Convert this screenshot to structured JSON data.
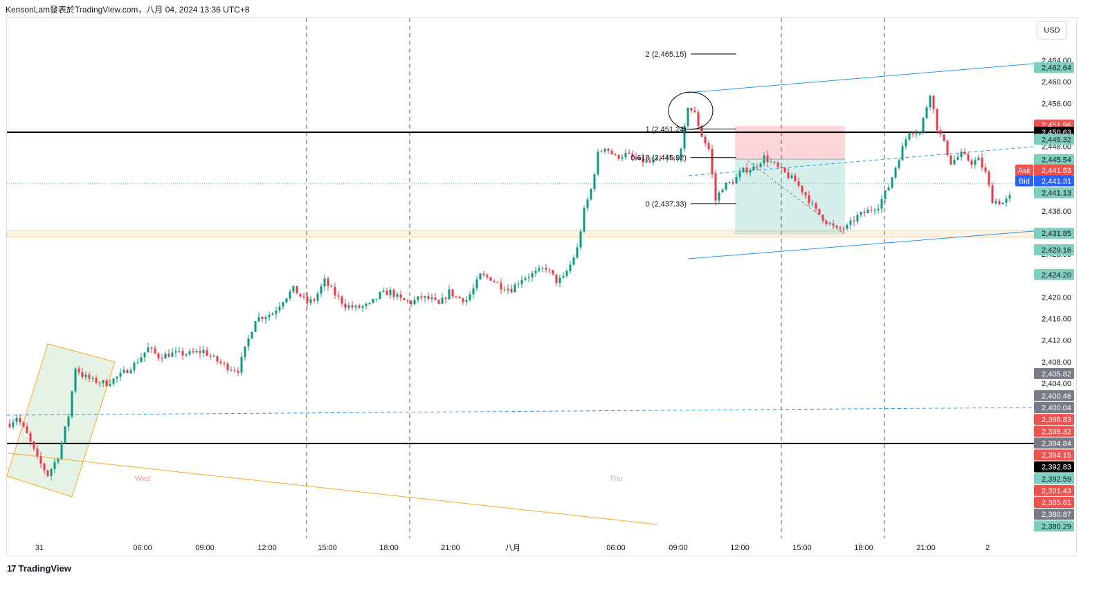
{
  "header": {
    "text": "KensonLam發表於TradingView.com，八月 04, 2024 13:36 UTC+8"
  },
  "currency_button": "USD",
  "footer": {
    "logo_mark": "17",
    "logo_text": "TradingView"
  },
  "chart_data": {
    "type": "candlestick",
    "ylim": [
      2377.5,
      2467.0
    ],
    "price_axis_ticks": [
      2464,
      2460,
      2456,
      2452,
      2448,
      2444,
      2440,
      2436,
      2432,
      2428,
      2424,
      2420,
      2416,
      2412,
      2408,
      2404
    ],
    "time_axis_labels": [
      "31",
      "06:00",
      "09:00",
      "12:00",
      "15:00",
      "18:00",
      "21:00",
      "八月",
      "06:00",
      "09:00",
      "12:00",
      "15:00",
      "18:00",
      "21:00",
      "2"
    ],
    "day_labels": [
      "Wed",
      "Thu"
    ],
    "horizontal_lines": [
      2450.63,
      2392.83
    ],
    "current_price": 2441.13,
    "price_labels": [
      {
        "value": "2,462.64",
        "price": 2462.64,
        "color": "#7fcfbf",
        "text_color": "#131722"
      },
      {
        "value": "2,451.96",
        "price": 2451.96,
        "color": "#ef5350",
        "text_color": "#ffffff"
      },
      {
        "value": "2,450.63",
        "price": 2450.63,
        "color": "#000000",
        "text_color": "#ffffff"
      },
      {
        "value": "2,449.32",
        "price": 2449.32,
        "color": "#7fcfbf",
        "text_color": "#131722"
      },
      {
        "value": "2,445.54",
        "price": 2445.54,
        "color": "#7fcfbf",
        "text_color": "#131722"
      },
      {
        "value": "2,441.63",
        "price": 2443.6,
        "color": "#ef5350",
        "text_color": "#ffffff",
        "tag": "Ask",
        "tag_color": "#ef5350"
      },
      {
        "value": "2,441.31",
        "price": 2441.6,
        "color": "#2962ff",
        "text_color": "#ffffff",
        "tag": "Bid",
        "tag_color": "#2962ff"
      },
      {
        "value": "2,441.13",
        "price": 2439.4,
        "color": "#7fcfbf",
        "text_color": "#131722"
      },
      {
        "value": "2,431.85",
        "price": 2431.85,
        "color": "#7fcfbf",
        "text_color": "#131722"
      },
      {
        "value": "2,429.16",
        "price": 2428.8,
        "color": "#7fcfbf",
        "text_color": "#131722"
      },
      {
        "value": "2,424.20",
        "price": 2424.2,
        "color": "#7fcfbf",
        "text_color": "#131722"
      },
      {
        "value": "2,405.82",
        "price": 2405.82,
        "color": "#787b86",
        "text_color": "#ffffff"
      },
      {
        "value": "2,400.46",
        "price": 2401.7,
        "color": "#787b86",
        "text_color": "#ffffff"
      },
      {
        "value": "2,400.04",
        "price": 2399.5,
        "color": "#787b86",
        "text_color": "#ffffff"
      },
      {
        "value": "2,398.83",
        "price": 2397.3,
        "color": "#ef5350",
        "text_color": "#ffffff"
      },
      {
        "value": "2,396.32",
        "price": 2395.1,
        "color": "#ef5350",
        "text_color": "#ffffff"
      },
      {
        "value": "2,394.84",
        "price": 2392.9,
        "color": "#787b86",
        "text_color": "#ffffff"
      },
      {
        "value": "2,394.15",
        "price": 2390.7,
        "color": "#ef5350",
        "text_color": "#ffffff"
      },
      {
        "value": "2,392.83",
        "price": 2388.5,
        "color": "#000000",
        "text_color": "#ffffff"
      },
      {
        "value": "2,392.59",
        "price": 2386.3,
        "color": "#7fcfbf",
        "text_color": "#131722"
      },
      {
        "value": "2,391.43",
        "price": 2384.1,
        "color": "#ef5350",
        "text_color": "#ffffff"
      },
      {
        "value": "2,385.61",
        "price": 2381.9,
        "color": "#ef5350",
        "text_color": "#ffffff"
      },
      {
        "value": "2,380.87",
        "price": 2379.7,
        "color": "#787b86",
        "text_color": "#ffffff"
      },
      {
        "value": "2,380.29",
        "price": 2377.5,
        "color": "#7fcfbf",
        "text_color": "#131722"
      }
    ],
    "fib_levels": [
      {
        "label": "2 (2,465.15)",
        "price": 2465.15
      },
      {
        "label": "1 (2,451.24)",
        "price": 2451.24
      },
      {
        "label": "0.618 (2,445.92)",
        "price": 2445.92
      },
      {
        "label": "0 (2,437.33)",
        "price": 2437.33
      }
    ],
    "close_path": [
      [
        0,
        2396.5
      ],
      [
        2,
        2397.8
      ],
      [
        5,
        2394.5
      ],
      [
        8,
        2390.0
      ],
      [
        11,
        2387.0
      ],
      [
        14,
        2390.5
      ],
      [
        17,
        2398.0
      ],
      [
        19,
        2407.0
      ],
      [
        21,
        2405.5
      ],
      [
        24,
        2404.5
      ],
      [
        28,
        2404.0
      ],
      [
        32,
        2405.5
      ],
      [
        36,
        2407.5
      ],
      [
        40,
        2410.5
      ],
      [
        43,
        2409.0
      ],
      [
        47,
        2409.5
      ],
      [
        52,
        2409.5
      ],
      [
        56,
        2410.0
      ],
      [
        59,
        2408.5
      ],
      [
        63,
        2407.0
      ],
      [
        66,
        2406.5
      ],
      [
        71,
        2416.0
      ],
      [
        76,
        2417.0
      ],
      [
        79,
        2419.5
      ],
      [
        82,
        2421.5
      ],
      [
        86,
        2419.0
      ],
      [
        88,
        2419.5
      ],
      [
        91,
        2423.0
      ],
      [
        94,
        2420.5
      ],
      [
        97,
        2418.5
      ],
      [
        100,
        2418.0
      ],
      [
        104,
        2418.5
      ],
      [
        107,
        2420.5
      ],
      [
        110,
        2421.0
      ],
      [
        113,
        2419.5
      ],
      [
        116,
        2419.0
      ],
      [
        119,
        2420.0
      ],
      [
        122,
        2419.5
      ],
      [
        124,
        2418.5
      ],
      [
        127,
        2421.0
      ],
      [
        129,
        2420.0
      ],
      [
        132,
        2419.5
      ],
      [
        134,
        2421.5
      ],
      [
        136,
        2424.0
      ],
      [
        139,
        2423.5
      ],
      [
        142,
        2422.0
      ],
      [
        145,
        2421.5
      ],
      [
        148,
        2423.5
      ],
      [
        152,
        2424.5
      ],
      [
        155,
        2425.5
      ],
      [
        158,
        2423.0
      ],
      [
        160,
        2423.5
      ],
      [
        162,
        2426.0
      ],
      [
        164,
        2429.0
      ],
      [
        166,
        2436.0
      ],
      [
        168,
        2440.0
      ],
      [
        170,
        2446.5
      ],
      [
        172,
        2448.0
      ],
      [
        175,
        2446.0
      ],
      [
        178,
        2446.5
      ],
      [
        181,
        2445.5
      ],
      [
        185,
        2445.0
      ],
      [
        188,
        2445.5
      ],
      [
        192,
        2445.5
      ],
      [
        194,
        2447.0
      ],
      [
        196,
        2455.5
      ],
      [
        198,
        2454.0
      ],
      [
        200,
        2450.0
      ],
      [
        202,
        2447.5
      ],
      [
        204,
        2438.0
      ],
      [
        206,
        2440.5
      ],
      [
        209,
        2441.5
      ],
      [
        212,
        2443.5
      ],
      [
        215,
        2444.0
      ],
      [
        218,
        2446.0
      ],
      [
        221,
        2444.5
      ],
      [
        224,
        2443.0
      ],
      [
        227,
        2441.5
      ],
      [
        230,
        2439.0
      ],
      [
        233,
        2436.0
      ],
      [
        236,
        2434.0
      ],
      [
        239,
        2432.5
      ],
      [
        242,
        2433.0
      ],
      [
        245,
        2435.0
      ],
      [
        248,
        2436.0
      ],
      [
        251,
        2437.0
      ],
      [
        254,
        2440.5
      ],
      [
        257,
        2446.0
      ],
      [
        260,
        2451.0
      ],
      [
        263,
        2450.5
      ],
      [
        265,
        2455.5
      ],
      [
        266,
        2458.0
      ],
      [
        268,
        2451.5
      ],
      [
        270,
        2448.5
      ],
      [
        272,
        2445.0
      ],
      [
        275,
        2446.5
      ],
      [
        278,
        2445.0
      ],
      [
        280,
        2445.5
      ],
      [
        282,
        2443.0
      ],
      [
        284,
        2438.0
      ],
      [
        287,
        2437.5
      ],
      [
        289,
        2438.5
      ]
    ],
    "annotations": [
      "Wed",
      "Thu"
    ]
  }
}
